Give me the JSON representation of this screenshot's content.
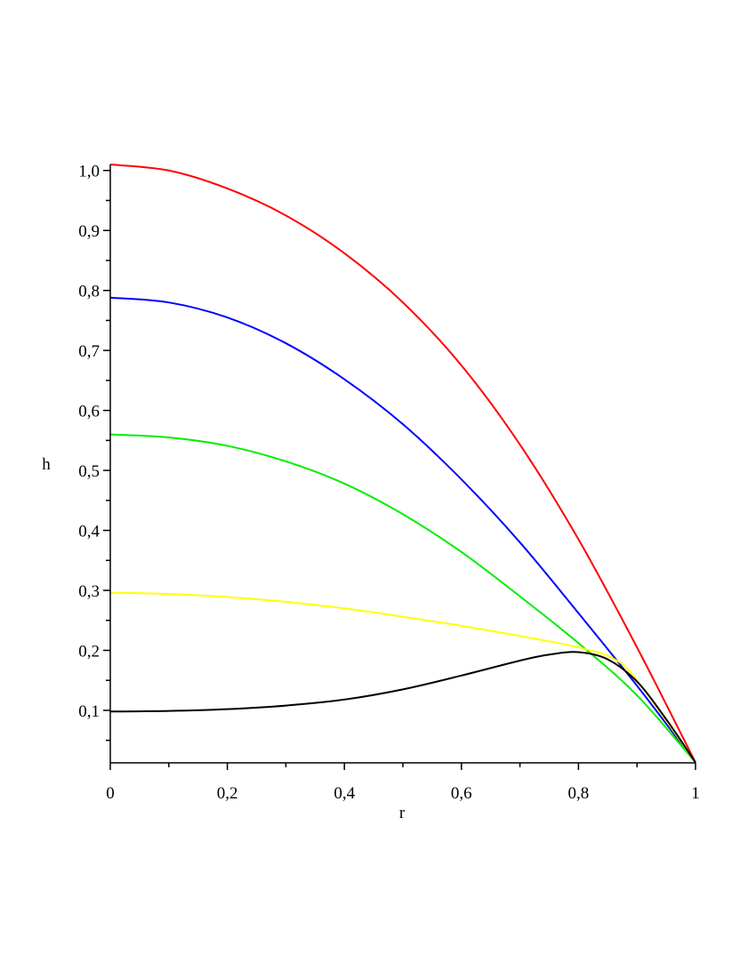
{
  "chart_data": {
    "type": "line",
    "title": "",
    "xlabel": "r",
    "ylabel": "h",
    "xlim": [
      0,
      1
    ],
    "ylim": [
      0.0125,
      1.01
    ],
    "grid": false,
    "legend": "none",
    "x_ticks": [
      {
        "value": 0,
        "label": "0"
      },
      {
        "value": 0.2,
        "label": "0,2"
      },
      {
        "value": 0.4,
        "label": "0,4"
      },
      {
        "value": 0.6,
        "label": "0,6"
      },
      {
        "value": 0.8,
        "label": "0,8"
      },
      {
        "value": 1,
        "label": "1"
      }
    ],
    "y_ticks": [
      {
        "value": 0.1,
        "label": "0,1"
      },
      {
        "value": 0.2,
        "label": "0,2"
      },
      {
        "value": 0.3,
        "label": "0,3"
      },
      {
        "value": 0.4,
        "label": "0,4"
      },
      {
        "value": 0.5,
        "label": "0,5"
      },
      {
        "value": 0.6,
        "label": "0,6"
      },
      {
        "value": 0.7,
        "label": "0,7"
      },
      {
        "value": 0.8,
        "label": "0,8"
      },
      {
        "value": 0.9,
        "label": "0,9"
      },
      {
        "value": 1.0,
        "label": "1,0"
      }
    ],
    "x_minor_step": 0.1,
    "y_minor_step": 0.05,
    "series": [
      {
        "color": "#ff0000",
        "points": [
          [
            0,
            1.01
          ],
          [
            0.1,
            1.0
          ],
          [
            0.2,
            0.97
          ],
          [
            0.3,
            0.925
          ],
          [
            0.4,
            0.862
          ],
          [
            0.5,
            0.78
          ],
          [
            0.6,
            0.675
          ],
          [
            0.7,
            0.543
          ],
          [
            0.8,
            0.385
          ],
          [
            0.9,
            0.205
          ],
          [
            1.0,
            0.013
          ]
        ]
      },
      {
        "color": "#0000ff",
        "points": [
          [
            0,
            0.788
          ],
          [
            0.1,
            0.78
          ],
          [
            0.2,
            0.755
          ],
          [
            0.3,
            0.712
          ],
          [
            0.4,
            0.652
          ],
          [
            0.5,
            0.577
          ],
          [
            0.6,
            0.485
          ],
          [
            0.7,
            0.38
          ],
          [
            0.8,
            0.262
          ],
          [
            0.9,
            0.141
          ],
          [
            1.0,
            0.013
          ]
        ]
      },
      {
        "color": "#00ee00",
        "points": [
          [
            0,
            0.56
          ],
          [
            0.1,
            0.555
          ],
          [
            0.2,
            0.541
          ],
          [
            0.3,
            0.515
          ],
          [
            0.4,
            0.478
          ],
          [
            0.5,
            0.427
          ],
          [
            0.6,
            0.364
          ],
          [
            0.7,
            0.29
          ],
          [
            0.8,
            0.212
          ],
          [
            0.9,
            0.125
          ],
          [
            1.0,
            0.013
          ]
        ]
      },
      {
        "color": "#ffff00",
        "points": [
          [
            0,
            0.296
          ],
          [
            0.1,
            0.294
          ],
          [
            0.2,
            0.289
          ],
          [
            0.3,
            0.281
          ],
          [
            0.4,
            0.27
          ],
          [
            0.5,
            0.256
          ],
          [
            0.6,
            0.241
          ],
          [
            0.7,
            0.224
          ],
          [
            0.8,
            0.205
          ],
          [
            0.86,
            0.186
          ],
          [
            0.9,
            0.15
          ],
          [
            1.0,
            0.013
          ]
        ]
      },
      {
        "color": "#000000",
        "points": [
          [
            0,
            0.098
          ],
          [
            0.1,
            0.099
          ],
          [
            0.2,
            0.102
          ],
          [
            0.3,
            0.108
          ],
          [
            0.4,
            0.118
          ],
          [
            0.5,
            0.135
          ],
          [
            0.6,
            0.158
          ],
          [
            0.7,
            0.183
          ],
          [
            0.75,
            0.193
          ],
          [
            0.8,
            0.197
          ],
          [
            0.85,
            0.185
          ],
          [
            0.9,
            0.148
          ],
          [
            0.95,
            0.085
          ],
          [
            1.0,
            0.013
          ]
        ]
      }
    ]
  }
}
